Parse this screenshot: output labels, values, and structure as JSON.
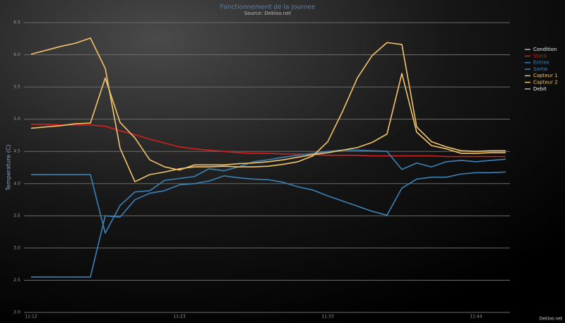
{
  "chart_data": {
    "type": "line",
    "title": "Fonctionnement de la journee",
    "subtitle": "Source: Dekloo.net",
    "y_label": "Temperature (C)",
    "credit": "Dekloo.net",
    "categories": [
      "11:12",
      null,
      null,
      null,
      null,
      null,
      null,
      null,
      null,
      null,
      "11:23",
      null,
      null,
      null,
      null,
      null,
      null,
      null,
      null,
      null,
      "11:33",
      null,
      null,
      null,
      null,
      null,
      null,
      null,
      null,
      null,
      "11:44",
      null,
      null
    ],
    "series": [
      {
        "name": "Condition",
        "color": "#b0b0b0",
        "values": [
          null,
          null,
          null,
          null,
          null,
          null,
          null,
          null,
          null,
          null,
          null,
          null,
          null,
          null,
          null,
          null,
          null,
          null,
          null,
          null,
          null,
          null,
          null,
          null,
          null,
          null,
          null,
          null,
          null,
          null,
          null,
          null,
          null
        ]
      },
      {
        "name": "Stock",
        "color": "#d42020",
        "values": [
          4.92,
          4.92,
          4.91,
          4.91,
          4.91,
          4.89,
          4.82,
          4.76,
          4.69,
          4.63,
          4.57,
          4.54,
          4.52,
          4.5,
          4.48,
          4.47,
          4.47,
          4.46,
          4.46,
          4.45,
          4.44,
          4.44,
          4.44,
          4.43,
          4.43,
          4.43,
          4.43,
          4.43,
          4.42,
          4.42,
          4.42,
          4.42,
          4.42
        ]
      },
      {
        "name": "Entree",
        "color": "#3b82b8",
        "values": [
          4.14,
          4.14,
          4.14,
          4.14,
          4.14,
          3.23,
          3.66,
          3.87,
          3.89,
          4.05,
          4.08,
          4.11,
          4.23,
          4.2,
          4.26,
          4.34,
          4.37,
          4.41,
          4.44,
          4.47,
          4.5,
          4.52,
          4.52,
          4.51,
          4.5,
          4.22,
          4.32,
          4.26,
          4.34,
          4.36,
          4.34,
          4.36,
          4.38
        ]
      },
      {
        "name": "Sortie",
        "color": "#3b82b8",
        "values": [
          2.55,
          2.55,
          2.55,
          2.55,
          2.55,
          3.5,
          3.48,
          3.75,
          3.85,
          3.89,
          3.98,
          4.0,
          4.04,
          4.12,
          4.09,
          4.07,
          4.06,
          4.02,
          3.95,
          3.9,
          3.81,
          3.73,
          3.65,
          3.57,
          3.51,
          3.93,
          4.07,
          4.1,
          4.1,
          4.15,
          4.17,
          4.17,
          4.18
        ]
      },
      {
        "name": "Capteur 1",
        "color": "#f2c46a",
        "values": [
          6.01,
          6.07,
          6.13,
          6.18,
          6.26,
          5.79,
          4.55,
          4.03,
          4.14,
          4.18,
          4.23,
          4.26,
          4.26,
          4.27,
          4.26,
          4.26,
          4.27,
          4.3,
          4.34,
          4.43,
          4.65,
          5.12,
          5.64,
          5.99,
          6.19,
          6.16,
          4.88,
          4.65,
          4.57,
          4.51,
          4.5,
          4.51,
          4.51
        ]
      },
      {
        "name": "Capteur 2",
        "color": "#f2c46a",
        "values": [
          4.86,
          4.88,
          4.9,
          4.93,
          4.94,
          5.64,
          4.95,
          4.71,
          4.37,
          4.26,
          4.21,
          4.29,
          4.29,
          4.29,
          4.31,
          4.32,
          4.34,
          4.37,
          4.41,
          4.45,
          4.48,
          4.52,
          4.56,
          4.64,
          4.77,
          5.71,
          4.8,
          4.59,
          4.54,
          4.47,
          4.47,
          4.48,
          4.48
        ]
      },
      {
        "name": "Debit",
        "color": "#b0b0b0",
        "values": [
          null,
          null,
          null,
          null,
          null,
          null,
          null,
          null,
          null,
          null,
          null,
          null,
          null,
          null,
          null,
          null,
          null,
          null,
          null,
          null,
          null,
          null,
          null,
          null,
          null,
          null,
          null,
          null,
          null,
          null,
          null,
          null,
          null
        ]
      }
    ],
    "ylim": [
      2,
      6.5
    ],
    "yticks": [
      {
        "value": 2,
        "label": "2.0"
      },
      2.5,
      {
        "value": 3,
        "label": "3.0"
      },
      3.5,
      {
        "value": 4,
        "label": "4.0"
      },
      4.5,
      {
        "value": 5,
        "label": "5.0"
      },
      5.5,
      {
        "value": 6,
        "label": "6.0"
      },
      6.5
    ],
    "grid": true,
    "legend": "right"
  }
}
